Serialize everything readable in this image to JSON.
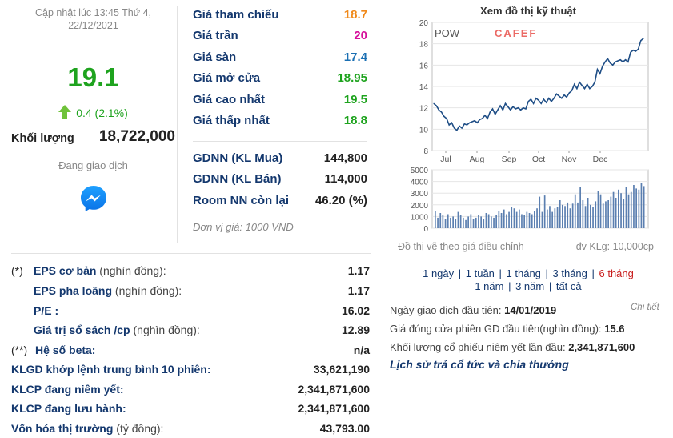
{
  "left": {
    "update_time": "Cập nhật lúc 13:45 Thứ 4,",
    "update_date": "22/12/2021",
    "price": "19.1",
    "change": "0.4 (2.1%)",
    "volume_label": "Khối lượng",
    "volume_value": "18,722,000",
    "status": "Đang giao dịch",
    "messenger_icon": "messenger-icon"
  },
  "prices": [
    {
      "label": "Giá tham chiếu",
      "value": "18.7",
      "color": "#f08a1c"
    },
    {
      "label": "Giá trần",
      "value": "20",
      "color": "#d6119c"
    },
    {
      "label": "Giá sàn",
      "value": "17.4",
      "color": "#1a6fb3"
    },
    {
      "label": "Giá mở cửa",
      "value": "18.95",
      "color": "#1ea31e"
    },
    {
      "label": "Giá cao nhất",
      "value": "19.5",
      "color": "#1ea31e"
    },
    {
      "label": "Giá thấp nhất",
      "value": "18.8",
      "color": "#1ea31e"
    }
  ],
  "foreign": [
    {
      "label": "GDNN (KL Mua)",
      "value": "144,800"
    },
    {
      "label": "GDNN (KL Bán)",
      "value": "114,000"
    },
    {
      "label": "Room NN còn lại",
      "value": "46.20 (%)"
    }
  ],
  "unit_note": "Đơn vị giá: 1000 VNĐ",
  "financials": [
    {
      "prefix": "(*)",
      "label": "EPS cơ bản",
      "suffix": " (nghìn đồng):",
      "value": "1.17"
    },
    {
      "prefix": "",
      "label": "EPS pha loãng",
      "suffix": " (nghìn đồng):",
      "value": "1.17"
    },
    {
      "prefix": "",
      "label": "P/E :",
      "suffix": "",
      "value": "16.02"
    },
    {
      "prefix": "",
      "label": "Giá trị sổ sách /cp",
      "suffix": " (nghìn đồng):",
      "value": "12.89"
    },
    {
      "prefix": "(**)",
      "label": "Hệ số beta:",
      "suffix": "",
      "value": "n/a"
    },
    {
      "prefix": "",
      "label": "KLGD khớp lệnh trung bình 10 phiên:",
      "suffix": "",
      "value": "33,621,190"
    },
    {
      "prefix": "",
      "label": "KLCP đang niêm yết:",
      "suffix": "",
      "value": "2,341,871,600"
    },
    {
      "prefix": "",
      "label": "KLCP đang lưu hành:",
      "suffix": "",
      "value": "2,341,871,600"
    },
    {
      "prefix": "",
      "label": "Vốn hóa thị trường",
      "suffix": " (tỷ đồng):",
      "value": "43,793.00"
    }
  ],
  "chart_panel": {
    "title": "Xem đồ thị kỹ thuật",
    "ticker": "POW",
    "brand": "CAFEF",
    "note_left": "Đồ thị vẽ theo giá điều chỉnh",
    "note_right": "đv KLg: 10,000cp",
    "ranges_line1": [
      "1 ngày",
      "1 tuần",
      "1 tháng",
      "3 tháng",
      "6 tháng"
    ],
    "ranges_line2": [
      "1 năm",
      "3 năm",
      "tất cả"
    ],
    "active_range": "6 tháng",
    "first_trade_label": "Ngày giao dịch đầu tiên:",
    "first_trade_value": "14/01/2019",
    "detail_link": "Chi tiết",
    "first_close_label": "Giá đóng cửa phiên GD đầu tiên(nghìn đồng):",
    "first_close_value": "15.6",
    "first_listed_label": "Khối lượng cổ phiếu niêm yết lần đầu:",
    "first_listed_value": "2,341,871,600",
    "history_link": "Lịch sử trả cổ tức và chia thưởng"
  },
  "chart_data": [
    {
      "type": "line",
      "x_ticks": [
        "Jul",
        "Aug",
        "Sep",
        "Oct",
        "Nov",
        "Dec"
      ],
      "y_ticks": [
        "8",
        "10",
        "12",
        "14",
        "16",
        "18",
        "20"
      ],
      "ylim": [
        8,
        20
      ],
      "series": [
        {
          "values": [
            12.4,
            12.2,
            11.8,
            11.6,
            11.2,
            11.0,
            10.4,
            10.6,
            10.1,
            9.9,
            10.3,
            10.1,
            10.5,
            10.4,
            10.6,
            10.7,
            10.8,
            10.6,
            10.9,
            11.0,
            11.3,
            11.0,
            11.6,
            11.9,
            11.4,
            11.8,
            12.2,
            11.8,
            12.4,
            12.1,
            11.8,
            12.1,
            11.9,
            12.0,
            11.8,
            12.0,
            11.9,
            12.6,
            12.8,
            12.4,
            12.9,
            12.7,
            12.4,
            12.8,
            12.5,
            12.9,
            12.6,
            12.9,
            13.3,
            13.1,
            12.9,
            13.2,
            13.0,
            13.4,
            13.6,
            14.2,
            13.8,
            14.4,
            14.1,
            13.8,
            14.2,
            13.8,
            14.0,
            14.4,
            15.6,
            15.2,
            15.9,
            16.3,
            16.6,
            16.2,
            16.0,
            16.3,
            16.4,
            16.5,
            16.3,
            16.5,
            16.3,
            17.2,
            17.4,
            17.3,
            17.5,
            18.3,
            18.5
          ]
        }
      ]
    },
    {
      "type": "bar",
      "y_ticks": [
        "0",
        "1000",
        "2000",
        "3000",
        "4000",
        "5000"
      ],
      "ylim": [
        0,
        5000
      ],
      "series": [
        {
          "values": [
            1500,
            900,
            1300,
            1100,
            800,
            1200,
            900,
            1000,
            800,
            1400,
            1100,
            900,
            700,
            1000,
            1200,
            800,
            900,
            1100,
            1000,
            800,
            1300,
            1200,
            1000,
            900,
            1100,
            1500,
            1300,
            1600,
            1200,
            1400,
            1800,
            1700,
            1400,
            1600,
            1200,
            1100,
            1400,
            1300,
            1200,
            1500,
            1700,
            2700,
            1400,
            2800,
            1600,
            1900,
            1400,
            1700,
            1800,
            2400,
            2000,
            1900,
            2200,
            1700,
            2100,
            2900,
            2200,
            3500,
            2400,
            1900,
            2600,
            2000,
            1800,
            2300,
            3200,
            2900,
            2100,
            2300,
            2400,
            2700,
            3100,
            2600,
            3300,
            3000,
            2500,
            3500,
            2900,
            3100,
            3700,
            3400,
            3300,
            3900,
            3600
          ]
        }
      ]
    }
  ]
}
